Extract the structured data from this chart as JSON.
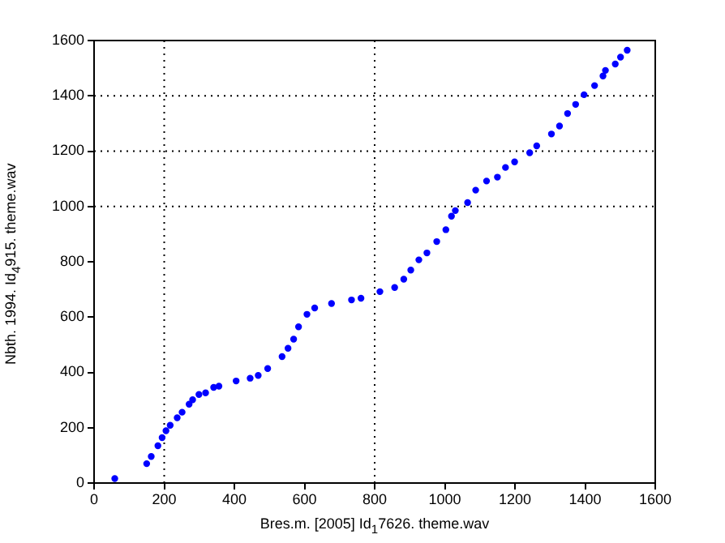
{
  "chart_data": {
    "type": "scatter",
    "xlabel": "Bres.m. [2005] Id$_{1}$7626. theme.wav",
    "ylabel": "Nbth. 1994. Id$_{4}$915. theme.wav",
    "xlim": [
      0,
      1600
    ],
    "xticks": [
      0,
      200,
      400,
      600,
      800,
      1000,
      1200,
      1400,
      1600
    ],
    "ylim": [
      0,
      1600
    ],
    "yticks": [
      0,
      200,
      400,
      600,
      800,
      1000,
      1200,
      1400,
      1600
    ],
    "grid": false,
    "legend": false,
    "marker": "circle",
    "ref_lines": [
      {
        "axis": "x",
        "value": 200,
        "color": "#000000",
        "line_style": "dotted"
      },
      {
        "axis": "x",
        "value": 800,
        "color": "#000000",
        "line_style": "dotted"
      },
      {
        "axis": "y",
        "value": 1000,
        "color": "#000000",
        "line_style": "dotted"
      },
      {
        "axis": "y",
        "value": 1200,
        "color": "#000000",
        "line_style": "dotted"
      },
      {
        "axis": "y",
        "value": 1400,
        "color": "#000000",
        "line_style": "dotted"
      }
    ],
    "series": [
      {
        "color": "#0000ff",
        "x": [
          59,
          150,
          163,
          182,
          194,
          205,
          217,
          237,
          251,
          271,
          281,
          299,
          318,
          341,
          356,
          405,
          445,
          468,
          495,
          536,
          553,
          569,
          583,
          607,
          629,
          677,
          734,
          761,
          815,
          857,
          883,
          903,
          926,
          949,
          977,
          1003,
          1019,
          1030,
          1065,
          1088,
          1119,
          1150,
          1173,
          1199,
          1242,
          1262,
          1304,
          1327,
          1350,
          1373,
          1397,
          1427,
          1451,
          1458,
          1486,
          1501,
          1520
        ],
        "values": [
          16,
          70,
          96,
          135,
          164,
          189,
          209,
          236,
          256,
          285,
          301,
          320,
          326,
          346,
          350,
          369,
          379,
          389,
          414,
          457,
          487,
          520,
          565,
          610,
          633,
          649,
          662,
          668,
          692,
          707,
          737,
          770,
          807,
          832,
          873,
          916,
          965,
          985,
          1014,
          1059,
          1092,
          1106,
          1141,
          1161,
          1194,
          1219,
          1262,
          1291,
          1336,
          1369,
          1404,
          1437,
          1472,
          1492,
          1515,
          1540,
          1565
        ]
      }
    ]
  }
}
